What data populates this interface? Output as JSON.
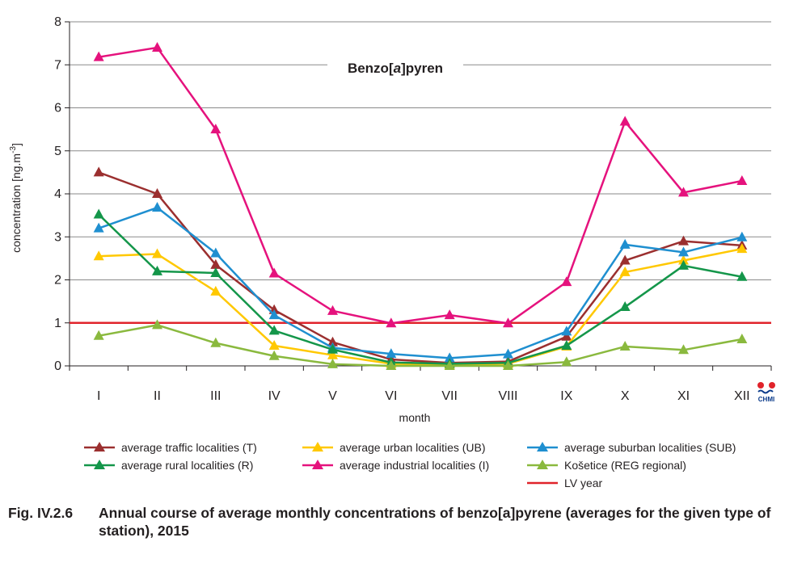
{
  "chart_data": {
    "type": "line",
    "title": "Benzo[a]pyren",
    "title_parts": [
      "Benzo[",
      "a",
      "]pyren"
    ],
    "xlabel": "month",
    "ylabel": "concentration [ng.m",
    "ylabel_sup": "-3",
    "ylabel_end": "]",
    "ylim": [
      0,
      8
    ],
    "yticks": [
      "0",
      "1",
      "2",
      "3",
      "4",
      "5",
      "6",
      "7",
      "8"
    ],
    "categories": [
      "I",
      "II",
      "III",
      "IV",
      "V",
      "VI",
      "VII",
      "VIII",
      "IX",
      "X",
      "XI",
      "XII"
    ],
    "grid": true,
    "legend_position": "bottom",
    "series": [
      {
        "name": "average traffic localities (T)",
        "color": "#9b2f2f",
        "values": [
          4.5,
          4.0,
          2.35,
          1.3,
          0.55,
          0.15,
          0.07,
          0.1,
          0.68,
          2.45,
          2.9,
          2.8
        ]
      },
      {
        "name": "average urban localities (UB)",
        "color": "#ffc800",
        "values": [
          2.55,
          2.6,
          1.73,
          0.47,
          0.25,
          0.05,
          0.02,
          0.05,
          0.45,
          2.18,
          2.45,
          2.72
        ]
      },
      {
        "name": "average suburban localities (SUB)",
        "color": "#1f8fd0",
        "values": [
          3.2,
          3.68,
          2.62,
          1.18,
          0.42,
          0.28,
          0.18,
          0.27,
          0.8,
          2.82,
          2.64,
          2.99
        ]
      },
      {
        "name": "average rural localities (R)",
        "color": "#14964a",
        "values": [
          3.52,
          2.2,
          2.16,
          0.82,
          0.38,
          0.08,
          0.05,
          0.07,
          0.47,
          1.37,
          2.33,
          2.07
        ]
      },
      {
        "name": "average industrial localities (I)",
        "color": "#e5127d",
        "values": [
          7.18,
          7.4,
          5.5,
          2.15,
          1.28,
          0.99,
          1.18,
          0.99,
          1.95,
          5.68,
          4.03,
          4.3
        ]
      },
      {
        "name": "Košetice (REG regional)",
        "color": "#8ab93e",
        "values": [
          0.7,
          0.95,
          0.53,
          0.23,
          0.04,
          0.0,
          0.0,
          0.0,
          0.09,
          0.45,
          0.37,
          0.62
        ]
      }
    ],
    "reference_line": {
      "name": "LV year",
      "color": "#e0232b",
      "value": 1
    }
  },
  "caption": {
    "number": "Fig. IV.2.6",
    "text": "Annual course of average monthly concentrations of benzo[a]pyrene (averages for the given type of station), 2015"
  },
  "logo": {
    "text": "CHMI"
  }
}
